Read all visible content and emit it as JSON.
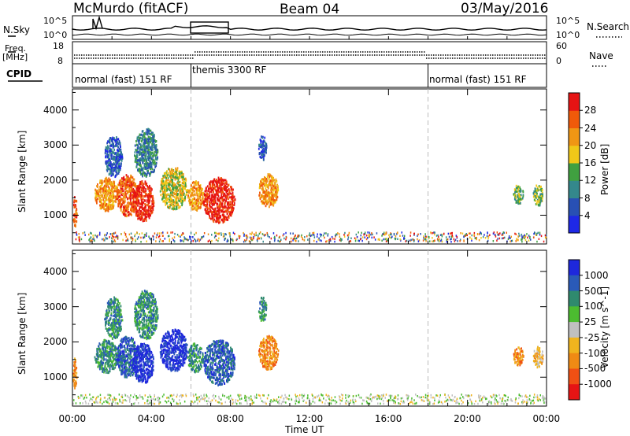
{
  "header": {
    "station": "McMurdo (fitACF)",
    "beam": "Beam 04",
    "date": "03/May/2016"
  },
  "left_labels": {
    "nsky": "N.Sky",
    "freq": "Freq.",
    "freq_unit": "[MHz]",
    "cpid": "CPID"
  },
  "right_labels": {
    "nsearch": "N.Search",
    "nave": "Nave"
  },
  "noise_axis": {
    "left_top": "10^5",
    "left_bottom": "10^0",
    "right_top": "10^5",
    "right_bottom": "10^0"
  },
  "freq_axis": {
    "left_top": "18",
    "left_bottom": "8",
    "right_top": "60",
    "right_bottom": "0"
  },
  "cpid_segments": [
    {
      "label": "normal (fast) 151 RF",
      "start_hour": 0,
      "end_hour": 6
    },
    {
      "label": "themis 3300 RF",
      "start_hour": 6,
      "end_hour": 18
    },
    {
      "label": "normal (fast) 151 RF",
      "start_hour": 18,
      "end_hour": 24
    }
  ],
  "chart_data": [
    {
      "type": "heatmap",
      "name": "power",
      "ylabel": "Slant Range [km]",
      "xlabel": "Time UT",
      "xlim": [
        0,
        24
      ],
      "ylim": [
        180,
        4600
      ],
      "x_ticks": [
        "00:00",
        "04:00",
        "08:00",
        "12:00",
        "16:00",
        "20:00",
        "00:00"
      ],
      "y_ticks": [
        1000,
        2000,
        3000,
        4000
      ],
      "colorbar": {
        "label": "Power [dB]",
        "ticks": [
          "4",
          "8",
          "12",
          "16",
          "20",
          "24",
          "28"
        ],
        "colors": [
          "#1e28e6",
          "#2850b4",
          "#34888c",
          "#40a040",
          "#f0c818",
          "#f09614",
          "#f05a0a",
          "#e61414"
        ]
      },
      "echo_regions": [
        {
          "t0": 0.0,
          "t1": 0.2,
          "r0": 700,
          "r1": 1600,
          "level": 6
        },
        {
          "t0": 1.1,
          "t1": 2.3,
          "r0": 1150,
          "r1": 2100,
          "level": 5
        },
        {
          "t0": 1.6,
          "t1": 2.5,
          "r0": 2100,
          "r1": 3300,
          "level": 1
        },
        {
          "t0": 2.2,
          "t1": 3.3,
          "r0": 1000,
          "r1": 2200,
          "level": 6
        },
        {
          "t0": 3.0,
          "t1": 4.1,
          "r0": 850,
          "r1": 2000,
          "level": 7
        },
        {
          "t0": 3.1,
          "t1": 4.3,
          "r0": 2100,
          "r1": 3500,
          "level": 2
        },
        {
          "t0": 4.4,
          "t1": 5.8,
          "r0": 1200,
          "r1": 2400,
          "level": 4
        },
        {
          "t0": 5.8,
          "t1": 6.6,
          "r0": 1150,
          "r1": 2000,
          "level": 5
        },
        {
          "t0": 6.6,
          "t1": 8.2,
          "r0": 800,
          "r1": 2100,
          "level": 7
        },
        {
          "t0": 9.4,
          "t1": 10.4,
          "r0": 1250,
          "r1": 2200,
          "level": 5
        },
        {
          "t0": 9.4,
          "t1": 9.8,
          "r0": 2600,
          "r1": 3300,
          "level": 1
        },
        {
          "t0": 22.3,
          "t1": 22.8,
          "r0": 1350,
          "r1": 1900,
          "level": 3
        },
        {
          "t0": 23.3,
          "t1": 23.8,
          "r0": 1300,
          "r1": 1900,
          "level": 3
        }
      ]
    },
    {
      "type": "heatmap",
      "name": "velocity",
      "ylabel": "Slant Range [km]",
      "xlabel": "Time UT",
      "xlim": [
        0,
        24
      ],
      "ylim": [
        180,
        4600
      ],
      "x_ticks": [
        "00:00",
        "04:00",
        "08:00",
        "12:00",
        "16:00",
        "20:00",
        "00:00"
      ],
      "y_ticks": [
        1000,
        2000,
        3000,
        4000
      ],
      "colorbar": {
        "label": "Velocity [m s^-1]",
        "ticks": [
          "1000",
          "500",
          "100",
          "25",
          "-25",
          "-100",
          "-500",
          "-1000"
        ],
        "colors": [
          "#1e28dc",
          "#2a5ab8",
          "#2f8a6e",
          "#4cbc30",
          "#c0c0c0",
          "#f0b41e",
          "#f08a14",
          "#f05014",
          "#e61414"
        ]
      },
      "echo_regions": [
        {
          "t0": 0.0,
          "t1": 0.2,
          "r0": 700,
          "r1": 1600,
          "level": 6
        },
        {
          "t0": 1.1,
          "t1": 2.3,
          "r0": 1150,
          "r1": 2100,
          "level": 2
        },
        {
          "t0": 1.6,
          "t1": 2.5,
          "r0": 2100,
          "r1": 3300,
          "level": 2
        },
        {
          "t0": 2.2,
          "t1": 3.3,
          "r0": 1000,
          "r1": 2200,
          "level": 1
        },
        {
          "t0": 3.0,
          "t1": 4.1,
          "r0": 850,
          "r1": 2000,
          "level": 0
        },
        {
          "t0": 3.1,
          "t1": 4.3,
          "r0": 2100,
          "r1": 3500,
          "level": 2
        },
        {
          "t0": 4.4,
          "t1": 5.8,
          "r0": 1200,
          "r1": 2400,
          "level": 0
        },
        {
          "t0": 5.8,
          "t1": 6.6,
          "r0": 1150,
          "r1": 2000,
          "level": 2
        },
        {
          "t0": 6.6,
          "t1": 8.2,
          "r0": 800,
          "r1": 2100,
          "level": 1
        },
        {
          "t0": 9.4,
          "t1": 10.4,
          "r0": 1250,
          "r1": 2200,
          "level": 6
        },
        {
          "t0": 9.4,
          "t1": 9.8,
          "r0": 2600,
          "r1": 3300,
          "level": 2
        },
        {
          "t0": 22.3,
          "t1": 22.8,
          "r0": 1350,
          "r1": 1900,
          "level": 6
        },
        {
          "t0": 23.3,
          "t1": 23.8,
          "r0": 1300,
          "r1": 1900,
          "level": 5
        }
      ]
    }
  ]
}
